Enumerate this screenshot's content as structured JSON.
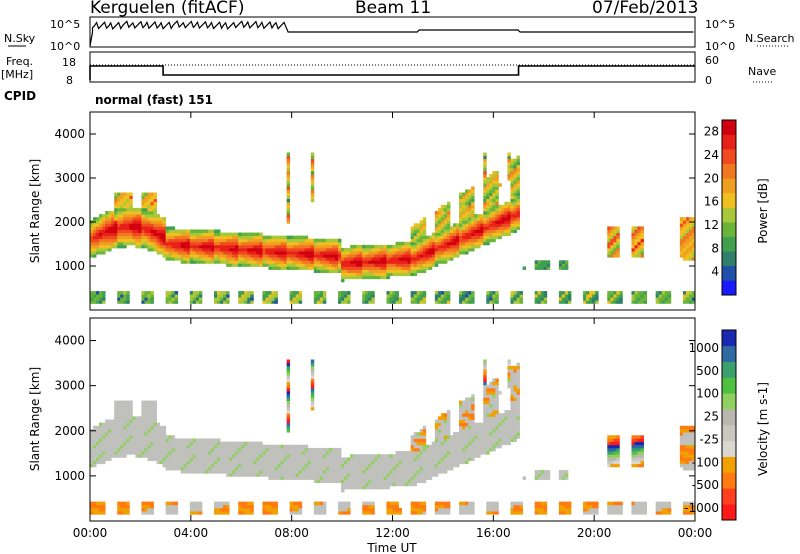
{
  "header": {
    "radar": "Kerguelen (fitACF)",
    "beam": "Beam 11",
    "date": "07/Feb/2013"
  },
  "strips": {
    "nsky_label": "N.Sky",
    "nsky_ticks": [
      "10^5",
      "10^0"
    ],
    "nsearch_label": "N.Search",
    "nsearch_ticks": [
      "10^5",
      "10^0"
    ],
    "freq_label": "Freq.",
    "freq_unit": "[MHz]",
    "freq_ticks": [
      "18",
      "8"
    ],
    "nave_label": "Nave",
    "nave_ticks": [
      "60",
      "0"
    ],
    "cpid_label": "CPID",
    "cpid_value": "normal (fast) 151"
  },
  "colors": {
    "power": [
      "#1a1aff",
      "#1f4fa8",
      "#2f7f6a",
      "#3fa050",
      "#6ab43a",
      "#a8c83a",
      "#f0c020",
      "#f0a020",
      "#f07820",
      "#f04a20",
      "#e82018",
      "#d00010"
    ],
    "velocity": [
      "#ff1a1a",
      "#ff4020",
      "#ff7a10",
      "#f0a000",
      "#d8d8d0",
      "#c8c8c0",
      "#b8b8b0",
      "#8fd060",
      "#50c040",
      "#3aa070",
      "#2f6aa0",
      "#1a2ab0"
    ],
    "gray": "#c0c0bc"
  },
  "chart_data": [
    {
      "type": "heatmap",
      "name": "Power",
      "ylabel": "Slant Range [km]",
      "y_ticks": [
        1000,
        2000,
        3000,
        4000
      ],
      "ylim": [
        0,
        4500
      ],
      "x_ticks": [
        "00:00",
        "04:00",
        "08:00",
        "12:00",
        "16:00",
        "20:00",
        "00:00"
      ],
      "colorbar_label": "Power [dB]",
      "colorbar_ticks": [
        4,
        8,
        12,
        16,
        20,
        24,
        28
      ],
      "colorbar_range": [
        0,
        30
      ]
    },
    {
      "type": "heatmap",
      "name": "Velocity",
      "ylabel": "Slant Range [km]",
      "y_ticks": [
        1000,
        2000,
        3000,
        4000
      ],
      "ylim": [
        0,
        4500
      ],
      "x_ticks": [
        "00:00",
        "04:00",
        "08:00",
        "12:00",
        "16:00",
        "20:00",
        "00:00"
      ],
      "xlabel": "Time UT",
      "colorbar_label": "Velocity [m s-1]",
      "colorbar_ticks": [
        "1000",
        "500",
        "100",
        "25",
        "-25",
        "-100",
        "-500",
        "-1000"
      ]
    }
  ]
}
